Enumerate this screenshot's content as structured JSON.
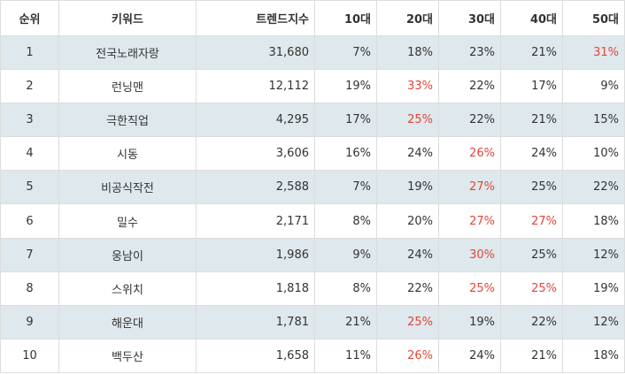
{
  "headers": [
    "순위",
    "키워드",
    "트렌드지수",
    "10대",
    "20대",
    "30대",
    "40대",
    "50대"
  ],
  "rows": [
    {
      "rank": "1",
      "keyword": "전국노래자랑",
      "index": "31,680",
      "p10": "7%",
      "p20": "18%",
      "p30": "23%",
      "p40": "21%",
      "p50": "31%",
      "highlight": [
        "p50"
      ]
    },
    {
      "rank": "2",
      "keyword": "런닝맨",
      "index": "12,112",
      "p10": "19%",
      "p20": "33%",
      "p30": "22%",
      "p40": "17%",
      "p50": "9%",
      "highlight": [
        "p20"
      ]
    },
    {
      "rank": "3",
      "keyword": "극한직업",
      "index": "4,295",
      "p10": "17%",
      "p20": "25%",
      "p30": "22%",
      "p40": "21%",
      "p50": "15%",
      "highlight": [
        "p20"
      ]
    },
    {
      "rank": "4",
      "keyword": "시동",
      "index": "3,606",
      "p10": "16%",
      "p20": "24%",
      "p30": "26%",
      "p40": "24%",
      "p50": "10%",
      "highlight": [
        "p30"
      ]
    },
    {
      "rank": "5",
      "keyword": "비공식작전",
      "index": "2,588",
      "p10": "7%",
      "p20": "19%",
      "p30": "27%",
      "p40": "25%",
      "p50": "22%",
      "highlight": [
        "p30"
      ]
    },
    {
      "rank": "6",
      "keyword": "밀수",
      "index": "2,171",
      "p10": "8%",
      "p20": "20%",
      "p30": "27%",
      "p40": "27%",
      "p50": "18%",
      "highlight": [
        "p30",
        "p40"
      ]
    },
    {
      "rank": "7",
      "keyword": "웅남이",
      "index": "1,986",
      "p10": "9%",
      "p20": "24%",
      "p30": "30%",
      "p40": "25%",
      "p50": "12%",
      "highlight": [
        "p30"
      ]
    },
    {
      "rank": "8",
      "keyword": "스위치",
      "index": "1,818",
      "p10": "8%",
      "p20": "22%",
      "p30": "25%",
      "p40": "25%",
      "p50": "19%",
      "highlight": [
        "p30",
        "p40"
      ]
    },
    {
      "rank": "9",
      "keyword": "해운대",
      "index": "1,781",
      "p10": "21%",
      "p20": "25%",
      "p30": "19%",
      "p40": "22%",
      "p50": "12%",
      "highlight": [
        "p20"
      ]
    },
    {
      "rank": "10",
      "keyword": "백두산",
      "index": "1,658",
      "p10": "11%",
      "p20": "26%",
      "p30": "24%",
      "p40": "21%",
      "p50": "18%",
      "highlight": [
        "p20"
      ]
    }
  ],
  "colors": {
    "highlight": "#e0463b",
    "stripe": "#dfe8ec",
    "border": "#dddddd",
    "text": "#333333"
  }
}
